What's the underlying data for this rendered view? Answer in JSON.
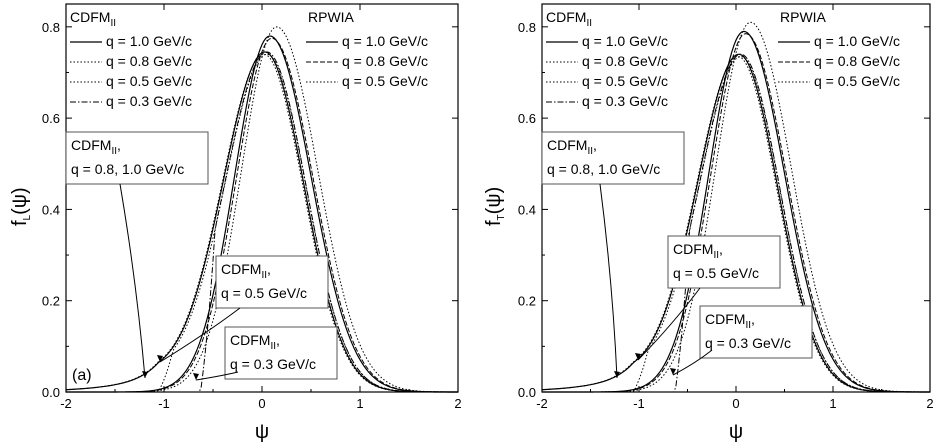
{
  "chart_data": [
    {
      "type": "line",
      "panel": "a",
      "panel_label": "(a)",
      "ylabel_main": "f",
      "ylabel_sub": "L",
      "ylabel_tail": "(ψ)",
      "xlabel": "ψ",
      "xlim": [
        -2,
        2
      ],
      "ylim": [
        0,
        0.85
      ],
      "xticks": [
        "-2",
        "-1",
        "0",
        "1",
        "2"
      ],
      "yticks": [
        "0.0",
        "0.2",
        "0.4",
        "0.6",
        "0.8"
      ],
      "legend_left_title_main": "CDFM",
      "legend_left_title_sub": "II",
      "legend_right_title": "RPWIA",
      "legend_left_entries": [
        "q = 1.0 GeV/c",
        "q = 0.8 GeV/c",
        "q = 0.5 GeV/c",
        "q = 0.3 GeV/c"
      ],
      "legend_right_entries": [
        "q = 1.0 GeV/c",
        "q = 0.8 GeV/c",
        "q = 0.5 GeV/c"
      ],
      "annotations": [
        {
          "name_main": "CDFM",
          "name_sub": "II",
          "comma": ",",
          "text": "q = 0.8, 1.0 GeV/c"
        },
        {
          "name_main": "CDFM",
          "name_sub": "II",
          "comma": ",",
          "text": "q = 0.5 GeV/c"
        },
        {
          "name_main": "CDFM",
          "name_sub": "II",
          "comma": ",",
          "text": "q = 0.3 GeV/c"
        }
      ],
      "series": [
        {
          "name": "CDFM_II q = 1.0 GeV/c",
          "style": "solid",
          "type": "cdfm",
          "peak_x": 0.03,
          "peak_y": 0.745,
          "cutoff": null
        },
        {
          "name": "CDFM_II q = 0.8 GeV/c",
          "style": "dot",
          "type": "cdfm",
          "peak_x": 0.02,
          "peak_y": 0.74,
          "cutoff": null
        },
        {
          "name": "CDFM_II q = 0.5 GeV/c",
          "style": "dot",
          "type": "cdfm",
          "peak_x": 0.05,
          "peak_y": 0.74,
          "cutoff": -1.05
        },
        {
          "name": "CDFM_II q = 0.3 GeV/c",
          "style": "dashdot",
          "type": "cdfm",
          "peak_x": 0.05,
          "peak_y": 0.745,
          "cutoff": -0.62
        },
        {
          "name": "RPWIA q = 1.0 GeV/c",
          "style": "solid",
          "type": "rpwia",
          "peak_x": 0.08,
          "peak_y": 0.78,
          "cutoff": null
        },
        {
          "name": "RPWIA q = 0.8 GeV/c",
          "style": "dash",
          "type": "rpwia",
          "peak_x": 0.1,
          "peak_y": 0.775,
          "cutoff": null
        },
        {
          "name": "RPWIA q = 0.5 GeV/c",
          "style": "dot",
          "type": "rpwia",
          "peak_x": 0.15,
          "peak_y": 0.8,
          "cutoff": null
        }
      ]
    },
    {
      "type": "line",
      "panel": "b",
      "panel_label": "",
      "ylabel_main": "f",
      "ylabel_sub": "T",
      "ylabel_tail": "(ψ)",
      "xlabel": "ψ",
      "xlim": [
        -2,
        2
      ],
      "ylim": [
        0,
        0.85
      ],
      "xticks": [
        "-2",
        "-1",
        "0",
        "1",
        "2"
      ],
      "yticks": [
        "0.0",
        "0.2",
        "0.4",
        "0.6",
        "0.8"
      ],
      "legend_left_title_main": "CDFM",
      "legend_left_title_sub": "II",
      "legend_right_title": "RPWIA",
      "legend_left_entries": [
        "q = 1.0 GeV/c",
        "q = 0.8 GeV/c",
        "q = 0.5 GeV/c",
        "q = 0.3 GeV/c"
      ],
      "legend_right_entries": [
        "q = 1.0 GeV/c",
        "q = 0.8 GeV/c",
        "q = 0.5 GeV/c"
      ],
      "annotations": [
        {
          "name_main": "CDFM",
          "name_sub": "II",
          "comma": ",",
          "text": "q = 0.8, 1.0 GeV/c"
        },
        {
          "name_main": "CDFM",
          "name_sub": "II",
          "comma": ",",
          "text": "q = 0.5 GeV/c"
        },
        {
          "name_main": "CDFM",
          "name_sub": "II",
          "comma": ",",
          "text": "q = 0.3 GeV/c"
        }
      ],
      "series": [
        {
          "name": "CDFM_II q = 1.0 GeV/c",
          "style": "solid",
          "type": "cdfm",
          "peak_x": 0.03,
          "peak_y": 0.74,
          "cutoff": null
        },
        {
          "name": "CDFM_II q = 0.8 GeV/c",
          "style": "dot",
          "type": "cdfm",
          "peak_x": 0.02,
          "peak_y": 0.735,
          "cutoff": null
        },
        {
          "name": "CDFM_II q = 0.5 GeV/c",
          "style": "dot",
          "type": "cdfm",
          "peak_x": 0.05,
          "peak_y": 0.735,
          "cutoff": -1.05
        },
        {
          "name": "CDFM_II q = 0.3 GeV/c",
          "style": "dashdot",
          "type": "cdfm",
          "peak_x": 0.05,
          "peak_y": 0.74,
          "cutoff": -0.62
        },
        {
          "name": "RPWIA q = 1.0 GeV/c",
          "style": "solid",
          "type": "rpwia",
          "peak_x": 0.08,
          "peak_y": 0.79,
          "cutoff": null
        },
        {
          "name": "RPWIA q = 0.8 GeV/c",
          "style": "dash",
          "type": "rpwia",
          "peak_x": 0.1,
          "peak_y": 0.785,
          "cutoff": null
        },
        {
          "name": "RPWIA q = 0.5 GeV/c",
          "style": "dot",
          "type": "rpwia",
          "peak_x": 0.15,
          "peak_y": 0.81,
          "cutoff": null
        }
      ]
    }
  ]
}
